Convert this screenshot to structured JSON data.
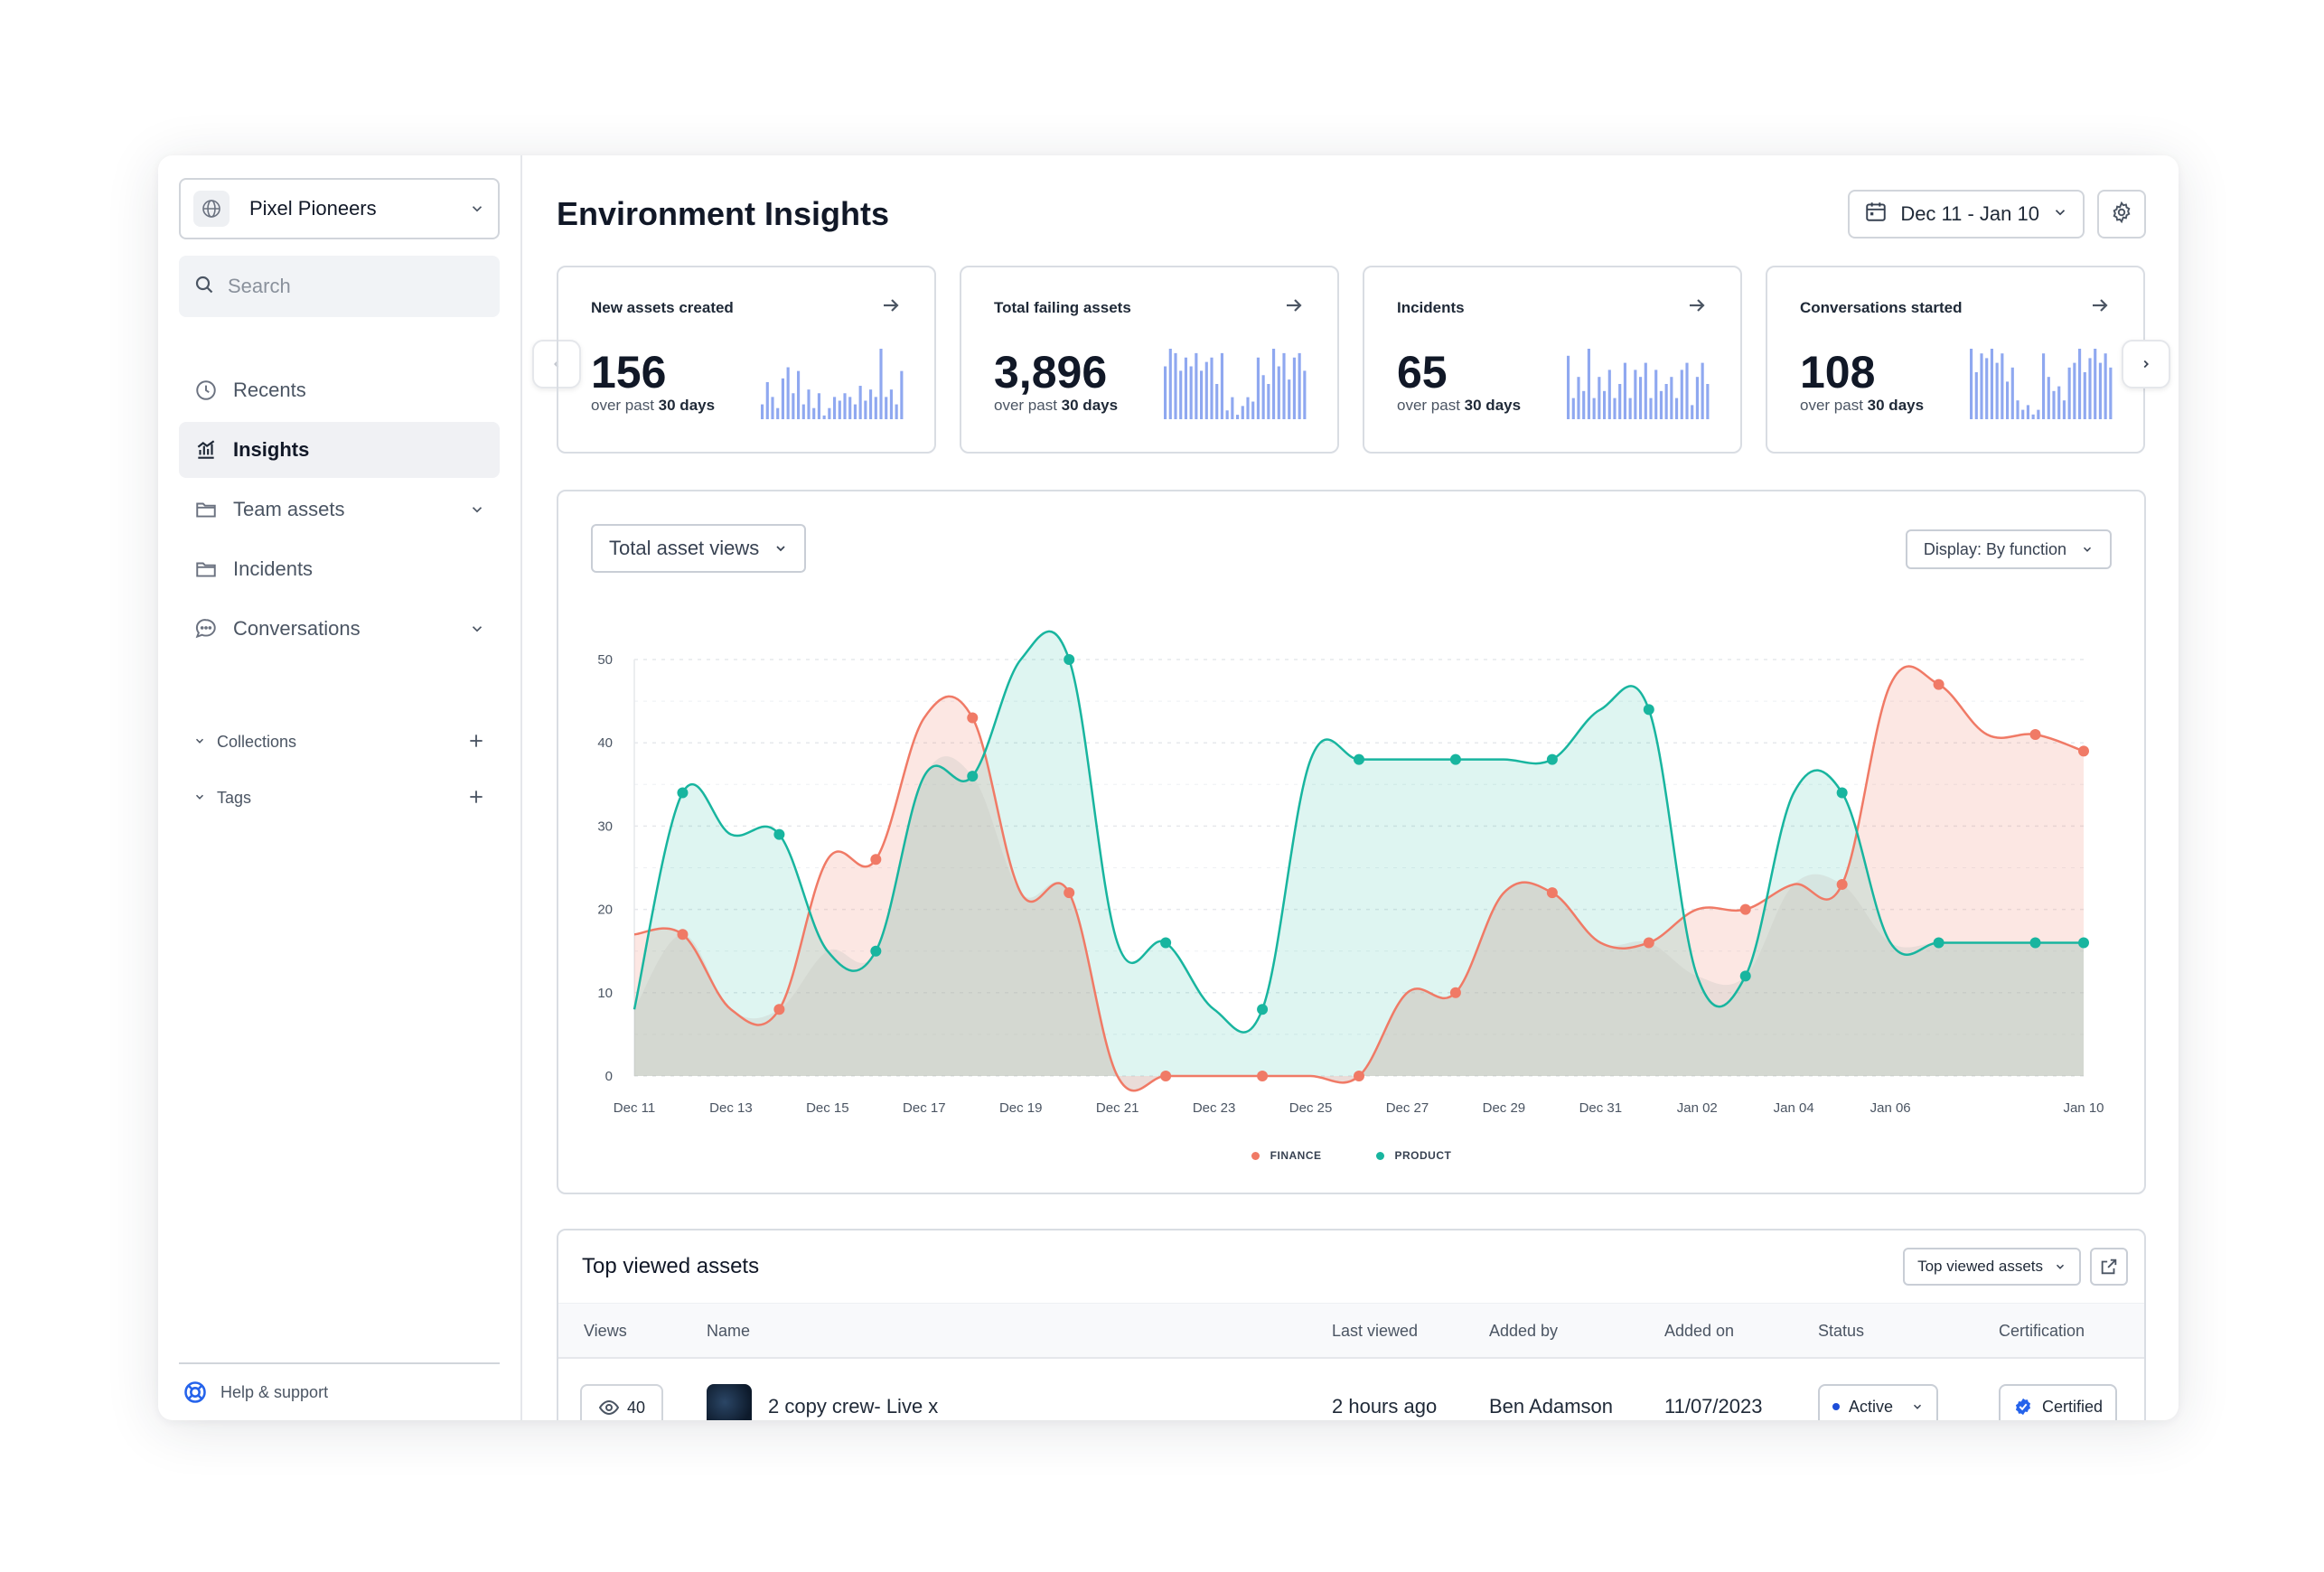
{
  "workspace": {
    "name": "Pixel Pioneers"
  },
  "search": {
    "placeholder": "Search"
  },
  "nav": [
    {
      "label": "Recents",
      "icon": "clock-icon"
    },
    {
      "label": "Insights",
      "icon": "chart-icon",
      "active": true
    },
    {
      "label": "Team assets",
      "icon": "folder-icon",
      "expandable": true
    },
    {
      "label": "Incidents",
      "icon": "folder-icon"
    },
    {
      "label": "Conversations",
      "icon": "chat-icon",
      "expandable": true
    }
  ],
  "sections": [
    {
      "label": "Collections"
    },
    {
      "label": "Tags"
    }
  ],
  "help": {
    "label": "Help & support"
  },
  "page": {
    "title": "Environment Insights",
    "date_range": "Dec 11 - Jan 10"
  },
  "kpis": [
    {
      "title": "New assets created",
      "value": "156",
      "sub_prefix": "over past",
      "sub_bold": "30 days",
      "spark": [
        4,
        10,
        6,
        3,
        11,
        14,
        7,
        13,
        4,
        8,
        3,
        7,
        1,
        3,
        6,
        5,
        7,
        6,
        4,
        9,
        5,
        8,
        6,
        19,
        6,
        8,
        4,
        13
      ]
    },
    {
      "title": "Total failing assets",
      "value": "3,896",
      "sub_prefix": "over past",
      "sub_bold": "30 days",
      "spark": [
        12,
        16,
        15,
        11,
        14,
        12,
        15,
        11,
        13,
        14,
        8,
        15,
        2,
        5,
        1,
        3,
        5,
        4,
        14,
        10,
        8,
        16,
        12,
        15,
        9,
        14,
        15,
        11
      ]
    },
    {
      "title": "Incidents",
      "value": "65",
      "sub_prefix": "over past",
      "sub_bold": "30 days",
      "spark": [
        9,
        3,
        6,
        4,
        10,
        3,
        6,
        4,
        7,
        3,
        5,
        8,
        3,
        7,
        6,
        8,
        3,
        7,
        4,
        5,
        6,
        3,
        7,
        8,
        2,
        6,
        8,
        5
      ]
    },
    {
      "title": "Conversations started",
      "value": "108",
      "sub_prefix": "over past",
      "sub_bold": "30 days",
      "spark": [
        15,
        10,
        14,
        13,
        15,
        12,
        14,
        8,
        11,
        4,
        2,
        3,
        1,
        2,
        14,
        9,
        6,
        7,
        4,
        11,
        12,
        15,
        10,
        13,
        15,
        12,
        14,
        11
      ]
    }
  ],
  "chart_controls": {
    "metric": "Total asset views",
    "display": "Display: By function"
  },
  "chart_data": {
    "type": "area",
    "x": [
      "Dec 11",
      "Dec 12",
      "Dec 13",
      "Dec 14",
      "Dec 15",
      "Dec 16",
      "Dec 17",
      "Dec 18",
      "Dec 19",
      "Dec 20",
      "Dec 21",
      "Dec 22",
      "Dec 23",
      "Dec 24",
      "Dec 25",
      "Dec 26",
      "Dec 27",
      "Dec 28",
      "Dec 29",
      "Dec 30",
      "Dec 31",
      "Jan 01",
      "Jan 02",
      "Jan 03",
      "Jan 04",
      "Jan 05",
      "Jan 06",
      "Jan 07",
      "Jan 08",
      "Jan 09",
      "Jan 10"
    ],
    "x_ticks": [
      "Dec 11",
      "Dec 13",
      "Dec 15",
      "Dec 17",
      "Dec 19",
      "Dec 21",
      "Dec 23",
      "Dec 25",
      "Dec 27",
      "Dec 29",
      "Dec 31",
      "Jan 02",
      "Jan 04",
      "Jan 06",
      "Jan 10"
    ],
    "y_ticks": [
      0,
      10,
      20,
      30,
      40,
      50
    ],
    "ylim": [
      0,
      50
    ],
    "series": [
      {
        "name": "FINANCE",
        "color": "#f07a66",
        "values": [
          17,
          17,
          8,
          8,
          26,
          26,
          43,
          43,
          22,
          22,
          0,
          0,
          0,
          0,
          0,
          0,
          10,
          10,
          22,
          22,
          16,
          16,
          20,
          20,
          23,
          23,
          47,
          47,
          41,
          41,
          39
        ]
      },
      {
        "name": "PRODUCT",
        "color": "#18b59f",
        "values": [
          8,
          34,
          29,
          29,
          15,
          15,
          36,
          36,
          50,
          50,
          16,
          16,
          8,
          8,
          38,
          38,
          38,
          38,
          38,
          38,
          44,
          44,
          12,
          12,
          34,
          34,
          16,
          16,
          16,
          16,
          16
        ]
      }
    ],
    "legend_position": "bottom",
    "grid": true
  },
  "table": {
    "title": "Top viewed assets",
    "dropdown": "Top viewed assets",
    "columns": [
      "Views",
      "Name",
      "Last viewed",
      "Added by",
      "Added on",
      "Status",
      "Certification"
    ],
    "rows": [
      {
        "views": "40",
        "name": "2 copy crew- Live x",
        "last_viewed": "2 hours ago",
        "added_by": "Ben Adamson",
        "added_on": "11/07/2023",
        "status": "Active",
        "certification": "Certified"
      }
    ]
  }
}
